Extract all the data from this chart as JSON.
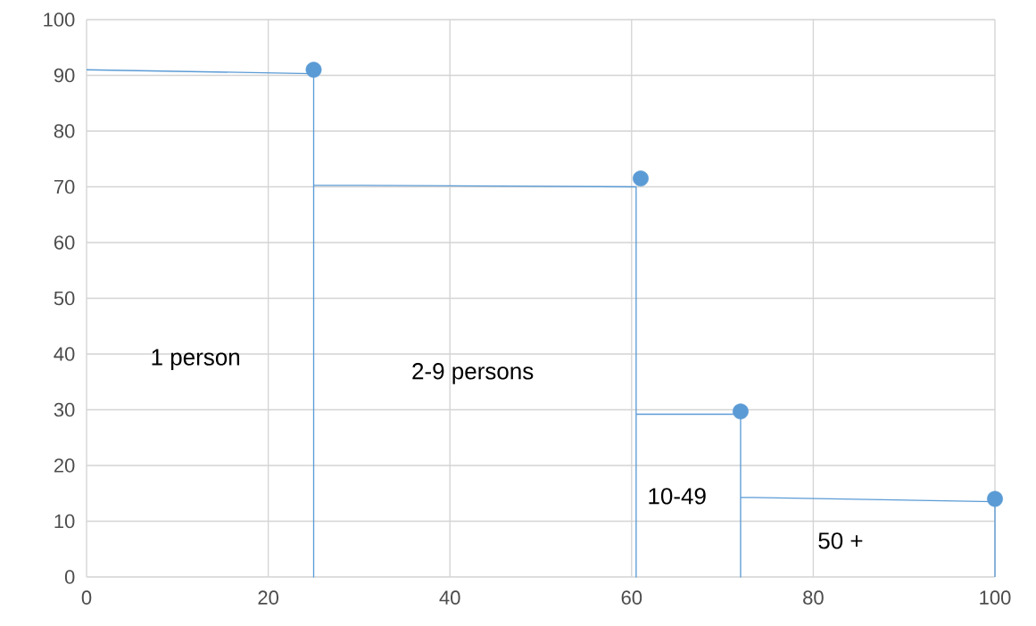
{
  "chart_data": {
    "type": "scatter",
    "xlim": [
      0,
      100
    ],
    "ylim": [
      0,
      100
    ],
    "xticks": [
      0,
      20,
      40,
      60,
      80,
      100
    ],
    "yticks": [
      0,
      10,
      20,
      30,
      40,
      50,
      60,
      70,
      80,
      90,
      100
    ],
    "grid": true,
    "series": [
      {
        "type": "line",
        "color": "#5b9bd5",
        "marker": "none",
        "x": [
          0,
          25,
          25,
          25,
          60.5,
          60.5,
          60.5,
          72,
          72,
          72,
          100,
          100
        ],
        "values": [
          91,
          90.3,
          0,
          70.3,
          70,
          0,
          29.2,
          29.2,
          0,
          14.3,
          13.5,
          0
        ]
      },
      {
        "color": "#5b9bd5",
        "marker": "circle",
        "x": [
          25,
          61,
          72,
          100
        ],
        "values": [
          91,
          71.5,
          29.7,
          14
        ]
      }
    ],
    "annotations": [
      "1 person",
      "2-9 persons",
      "10-49",
      "50 +"
    ]
  }
}
